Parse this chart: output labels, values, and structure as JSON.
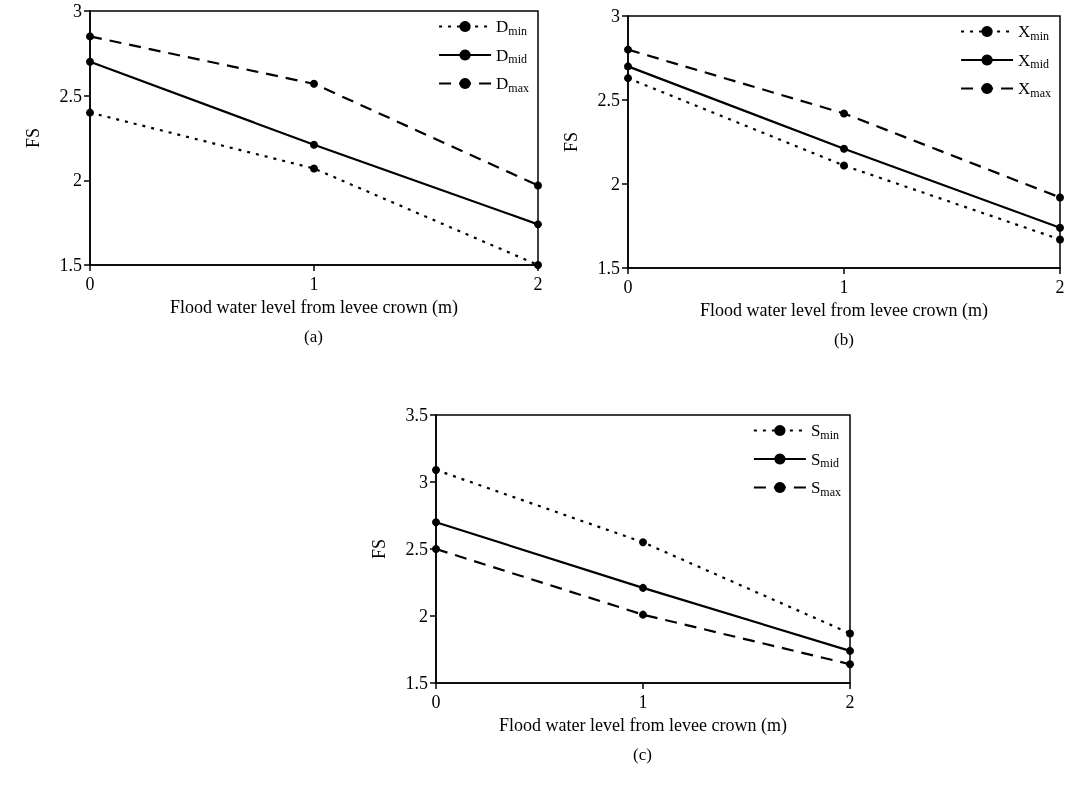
{
  "chart_data": [
    {
      "type": "line",
      "xlabel": "Flood water level from levee crown (m)",
      "ylabel": "FS",
      "annotations": [
        "(a)"
      ],
      "x": [
        0,
        1,
        2
      ],
      "xlim": [
        0,
        2
      ],
      "xticks": [
        0,
        1,
        2
      ],
      "ylim": [
        1.5,
        3
      ],
      "yticks": [
        1.5,
        2,
        2.5,
        3
      ],
      "grid": false,
      "legend": "top right",
      "marker": "circle",
      "series": [
        {
          "name": "D$_{min}$",
          "color": "#000000",
          "line_style": "dotted",
          "values": [
            2.4,
            2.07,
            1.5
          ]
        },
        {
          "name": "D$_{mid}$",
          "color": "#000000",
          "line_style": "solid",
          "values": [
            2.7,
            2.21,
            1.74
          ]
        },
        {
          "name": "D$_{max}$",
          "color": "#000000",
          "line_style": "dashed",
          "values": [
            2.85,
            2.57,
            1.97
          ]
        }
      ]
    },
    {
      "type": "line",
      "xlabel": "Flood water level from levee crown (m)",
      "ylabel": "FS",
      "annotations": [
        "(b)"
      ],
      "x": [
        0,
        1,
        2
      ],
      "xlim": [
        0,
        2
      ],
      "xticks": [
        0,
        1,
        2
      ],
      "ylim": [
        1.5,
        3
      ],
      "yticks": [
        1.5,
        2,
        2.5,
        3
      ],
      "grid": false,
      "legend": "top right",
      "marker": "circle",
      "series": [
        {
          "name": "X$_{min}$",
          "color": "#000000",
          "line_style": "dotted",
          "values": [
            2.63,
            2.11,
            1.67
          ]
        },
        {
          "name": "X$_{mid}$",
          "color": "#000000",
          "line_style": "solid",
          "values": [
            2.7,
            2.21,
            1.74
          ]
        },
        {
          "name": "X$_{max}$",
          "color": "#000000",
          "line_style": "dashed",
          "values": [
            2.8,
            2.42,
            1.92
          ]
        }
      ]
    },
    {
      "type": "line",
      "xlabel": "Flood water level from levee crown (m)",
      "ylabel": "FS",
      "annotations": [
        "(c)"
      ],
      "x": [
        0,
        1,
        2
      ],
      "xlim": [
        0,
        2
      ],
      "xticks": [
        0,
        1,
        2
      ],
      "ylim": [
        1.5,
        3.5
      ],
      "yticks": [
        1.5,
        2,
        2.5,
        3,
        3.5
      ],
      "grid": false,
      "legend": "top right",
      "marker": "circle",
      "series": [
        {
          "name": "S$_{min}$",
          "color": "#000000",
          "line_style": "dotted",
          "values": [
            3.09,
            2.55,
            1.87
          ]
        },
        {
          "name": "S$_{mid}$",
          "color": "#000000",
          "line_style": "solid",
          "values": [
            2.7,
            2.21,
            1.74
          ]
        },
        {
          "name": "S$_{max}$",
          "color": "#000000",
          "line_style": "dashed",
          "values": [
            2.5,
            2.01,
            1.64
          ]
        }
      ]
    }
  ]
}
